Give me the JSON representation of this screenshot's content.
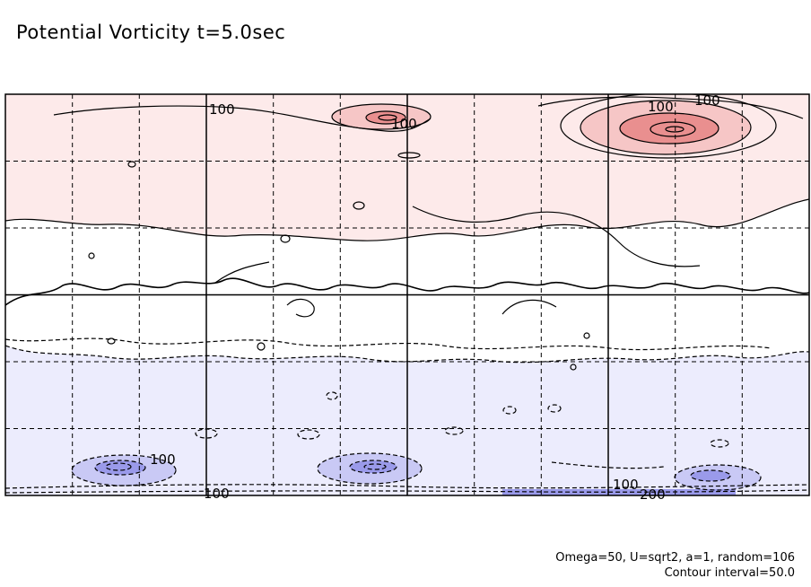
{
  "figure": {
    "title": "Potential Vorticity t=5.0sec",
    "footnote_params": "Omega=50, U=sqrt2, a=1, random=106",
    "footnote_interval": "Contour interval=50.0"
  },
  "colors": {
    "positive_band": "#fdeaea",
    "negative_band": "#ececfd",
    "positive_fill_1": "#f6c6c6",
    "positive_fill_2": "#e98f8f",
    "negative_fill_1": "#c9c9f5",
    "negative_fill_2": "#9a9aea",
    "contour": "#000000"
  },
  "chart_data": {
    "type": "contour",
    "title": "Potential Vorticity t=5.0sec",
    "quantity": "Potential Vorticity",
    "time": "t=5.0sec",
    "contour_interval": 50.0,
    "grid": true,
    "grid_columns": 12,
    "grid_rows": 6,
    "negative_contours": "dashed",
    "positive_contours": "solid",
    "contour_labels": [
      {
        "text": "100",
        "sign": "positive",
        "region": "north-band"
      },
      {
        "text": "100",
        "sign": "positive",
        "region": "north-band-vortex-center"
      },
      {
        "text": "100",
        "sign": "positive",
        "region": "north-band-vortex-right"
      },
      {
        "text": "100",
        "sign": "positive",
        "region": "north-band-vortex-right"
      },
      {
        "text": "100",
        "sign": "negative",
        "region": "south-band-vortex-left"
      },
      {
        "text": "100",
        "sign": "negative",
        "region": "south-edge"
      },
      {
        "text": "100",
        "sign": "negative",
        "region": "south-edge-right"
      },
      {
        "text": "200",
        "sign": "negative",
        "region": "south-edge-right"
      }
    ]
  }
}
